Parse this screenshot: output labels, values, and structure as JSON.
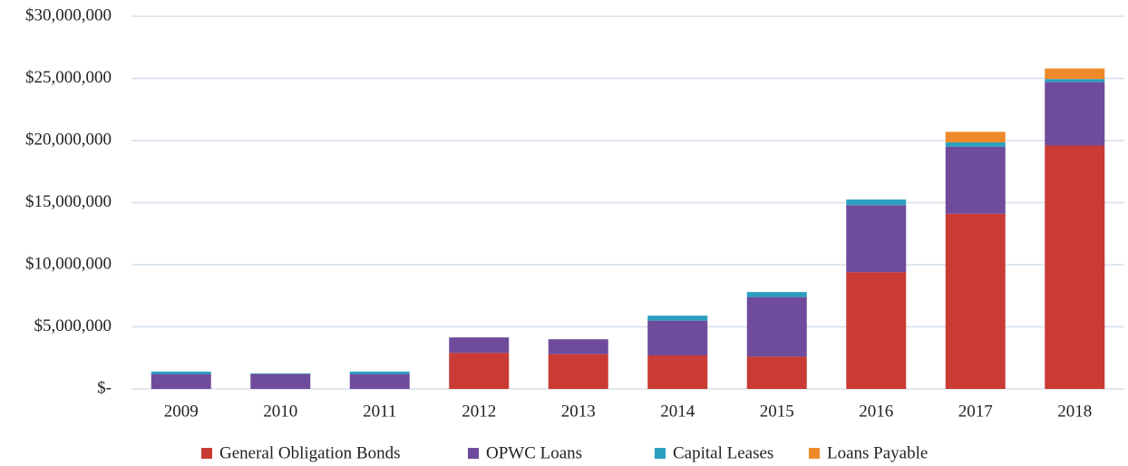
{
  "chart_data": {
    "type": "stacked_bar",
    "categories": [
      "2009",
      "2010",
      "2011",
      "2012",
      "2013",
      "2014",
      "2015",
      "2016",
      "2017",
      "2018"
    ],
    "series": [
      {
        "name": "General Obligation Bonds",
        "color": "#c93b34",
        "values": [
          0,
          0,
          0,
          2900000,
          2800000,
          2700000,
          2600000,
          9400000,
          14100000,
          19600000
        ]
      },
      {
        "name": "OPWC Loans",
        "color": "#6f4b9b",
        "values": [
          1200000,
          1200000,
          1200000,
          1250000,
          1200000,
          2800000,
          4800000,
          5400000,
          5400000,
          5100000
        ]
      },
      {
        "name": "Capital Leases",
        "color": "#2b9fc0",
        "values": [
          200000,
          50000,
          200000,
          0,
          0,
          400000,
          400000,
          450000,
          350000,
          250000
        ]
      },
      {
        "name": "Loans Payable",
        "color": "#ef8a2a",
        "values": [
          0,
          0,
          0,
          0,
          0,
          0,
          0,
          0,
          850000,
          850000
        ]
      }
    ],
    "ylim": [
      0,
      30000000
    ],
    "yticks": [
      {
        "value": 0,
        "label": "$-"
      },
      {
        "value": 5000000,
        "label": "$5,000,000"
      },
      {
        "value": 10000000,
        "label": "$10,000,000"
      },
      {
        "value": 15000000,
        "label": "$15,000,000"
      },
      {
        "value": 20000000,
        "label": "$20,000,000"
      },
      {
        "value": 25000000,
        "label": "$25,000,000"
      },
      {
        "value": 30000000,
        "label": "$30,000,000"
      }
    ],
    "grid": true,
    "legend": "bottom"
  }
}
